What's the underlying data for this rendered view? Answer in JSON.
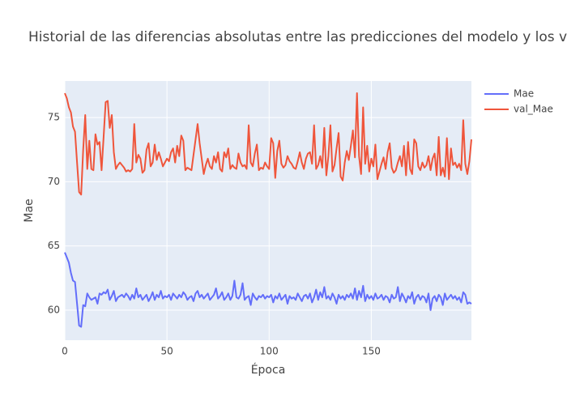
{
  "chart_data": {
    "type": "line",
    "title": "Historial de las diferencias absolutas entre las predicciones del modelo y los v",
    "x_label": "Época",
    "y_label": "Mae",
    "xlim": [
      0,
      199
    ],
    "ylim": [
      57.66,
      77.85
    ],
    "xticks": [
      0,
      50,
      100,
      150
    ],
    "yticks": [
      60,
      65,
      70,
      75
    ],
    "grid": true,
    "legend": "top-right",
    "x": [
      0,
      1,
      2,
      3,
      4,
      5,
      6,
      7,
      8,
      9,
      10,
      11,
      12,
      13,
      14,
      15,
      16,
      17,
      18,
      19,
      20,
      21,
      22,
      23,
      24,
      25,
      26,
      27,
      28,
      29,
      30,
      31,
      32,
      33,
      34,
      35,
      36,
      37,
      38,
      39,
      40,
      41,
      42,
      43,
      44,
      45,
      46,
      47,
      48,
      49,
      50,
      51,
      52,
      53,
      54,
      55,
      56,
      57,
      58,
      59,
      60,
      61,
      62,
      63,
      64,
      65,
      66,
      67,
      68,
      69,
      70,
      71,
      72,
      73,
      74,
      75,
      76,
      77,
      78,
      79,
      80,
      81,
      82,
      83,
      84,
      85,
      86,
      87,
      88,
      89,
      90,
      91,
      92,
      93,
      94,
      95,
      96,
      97,
      98,
      99,
      100,
      101,
      102,
      103,
      104,
      105,
      106,
      107,
      108,
      109,
      110,
      111,
      112,
      113,
      114,
      115,
      116,
      117,
      118,
      119,
      120,
      121,
      122,
      123,
      124,
      125,
      126,
      127,
      128,
      129,
      130,
      131,
      132,
      133,
      134,
      135,
      136,
      137,
      138,
      139,
      140,
      141,
      142,
      143,
      144,
      145,
      146,
      147,
      148,
      149,
      150,
      151,
      152,
      153,
      154,
      155,
      156,
      157,
      158,
      159,
      160,
      161,
      162,
      163,
      164,
      165,
      166,
      167,
      168,
      169,
      170,
      171,
      172,
      173,
      174,
      175,
      176,
      177,
      178,
      179,
      180,
      181,
      182,
      183,
      184,
      185,
      186,
      187,
      188,
      189,
      190,
      191,
      192,
      193,
      194,
      195,
      196,
      197,
      198,
      199
    ],
    "series": [
      {
        "name": "Mae",
        "color": "#636efa",
        "values": [
          64.5,
          64.1,
          63.7,
          62.9,
          62.3,
          62.2,
          60.5,
          58.8,
          58.7,
          60.4,
          60.3,
          61.3,
          61.0,
          60.8,
          60.9,
          61.0,
          60.5,
          61.3,
          61.2,
          61.4,
          61.3,
          61.6,
          60.8,
          61.1,
          61.5,
          60.7,
          61.0,
          61.1,
          61.2,
          61.0,
          61.3,
          61.1,
          60.8,
          61.2,
          60.9,
          61.7,
          61.0,
          61.2,
          60.8,
          61.0,
          61.2,
          60.7,
          61.0,
          61.4,
          60.8,
          61.2,
          61.0,
          61.5,
          60.9,
          61.1,
          61.0,
          61.2,
          60.8,
          61.3,
          61.1,
          60.9,
          61.2,
          61.0,
          61.4,
          61.2,
          60.8,
          61.0,
          61.1,
          60.7,
          61.3,
          61.5,
          61.0,
          61.2,
          60.9,
          61.1,
          61.3,
          60.8,
          61.0,
          61.2,
          61.7,
          60.9,
          61.1,
          61.4,
          60.8,
          61.0,
          61.3,
          60.8,
          61.1,
          62.3,
          61.0,
          60.9,
          61.2,
          62.1,
          60.8,
          61.0,
          61.1,
          60.4,
          61.3,
          61.0,
          60.8,
          61.1,
          61.0,
          61.2,
          60.9,
          61.1,
          61.0,
          61.2,
          60.6,
          61.1,
          60.9,
          61.3,
          60.8,
          61.0,
          61.2,
          60.5,
          61.1,
          60.9,
          61.0,
          60.8,
          61.3,
          61.0,
          60.7,
          61.1,
          61.2,
          60.9,
          61.3,
          60.6,
          61.0,
          61.6,
          60.8,
          61.4,
          61.0,
          61.8,
          60.9,
          61.1,
          60.8,
          61.3,
          61.0,
          60.5,
          61.2,
          60.9,
          61.1,
          60.8,
          61.2,
          61.0,
          61.3,
          60.9,
          61.7,
          60.8,
          61.5,
          61.0,
          61.9,
          60.7,
          61.2,
          60.9,
          61.1,
          60.8,
          61.3,
          60.9,
          61.0,
          61.2,
          60.8,
          61.1,
          61.0,
          60.6,
          61.2,
          60.9,
          61.0,
          61.8,
          60.7,
          61.3,
          61.0,
          60.6,
          61.1,
          60.9,
          61.4,
          60.5,
          61.0,
          61.2,
          60.8,
          61.1,
          61.0,
          60.6,
          61.3,
          60.0,
          60.9,
          61.1,
          60.7,
          61.2,
          61.0,
          60.4,
          61.3,
          60.8,
          61.0,
          61.2,
          60.9,
          61.1,
          60.8,
          61.0,
          60.6,
          61.4,
          61.2,
          60.5,
          60.6,
          60.5
        ]
      },
      {
        "name": "val_Mae",
        "color": "#EF553B",
        "values": [
          76.9,
          76.5,
          75.8,
          75.4,
          74.3,
          73.9,
          71.5,
          69.2,
          69.0,
          72.5,
          75.2,
          71.0,
          73.2,
          71.0,
          70.9,
          73.7,
          72.9,
          73.1,
          70.9,
          73.5,
          76.2,
          76.3,
          74.2,
          75.2,
          72.3,
          71.0,
          71.3,
          71.5,
          71.3,
          71.1,
          70.8,
          70.9,
          70.8,
          71.0,
          74.5,
          71.5,
          72.1,
          71.8,
          70.7,
          70.9,
          72.5,
          73.0,
          71.2,
          71.5,
          72.9,
          71.7,
          72.3,
          71.8,
          71.2,
          71.5,
          71.8,
          71.6,
          72.3,
          72.6,
          71.5,
          72.8,
          72.0,
          73.6,
          73.2,
          70.9,
          71.1,
          71.0,
          70.9,
          72.1,
          73.3,
          74.5,
          73.0,
          71.8,
          70.6,
          71.3,
          71.8,
          71.2,
          71.0,
          72.0,
          71.5,
          72.3,
          71.0,
          70.8,
          72.3,
          71.9,
          72.6,
          71.0,
          71.3,
          71.1,
          71.0,
          72.2,
          71.5,
          71.2,
          71.3,
          71.0,
          74.4,
          71.5,
          71.2,
          72.2,
          72.9,
          70.9,
          71.1,
          71.0,
          71.5,
          71.2,
          71.0,
          73.4,
          73.0,
          70.3,
          72.4,
          73.2,
          71.4,
          71.1,
          71.3,
          72.0,
          71.6,
          71.4,
          71.1,
          71.0,
          71.6,
          72.3,
          71.5,
          71.0,
          71.8,
          72.2,
          72.3,
          71.4,
          74.4,
          71.0,
          71.3,
          72.0,
          71.1,
          74.2,
          70.5,
          72.0,
          74.4,
          70.8,
          71.3,
          72.6,
          73.8,
          70.4,
          70.1,
          71.5,
          72.4,
          71.7,
          72.8,
          74.0,
          71.9,
          76.9,
          72.0,
          70.6,
          75.8,
          71.4,
          72.8,
          70.8,
          71.8,
          71.2,
          72.9,
          70.2,
          70.8,
          71.4,
          71.9,
          71.0,
          72.3,
          73.0,
          71.1,
          70.7,
          70.9,
          71.5,
          72.0,
          71.2,
          72.8,
          70.5,
          73.1,
          71.0,
          70.6,
          73.3,
          73.0,
          71.2,
          70.9,
          71.5,
          71.1,
          71.3,
          72.0,
          70.9,
          71.8,
          72.2,
          70.5,
          73.5,
          70.5,
          71.1,
          70.4,
          73.4,
          70.2,
          72.6,
          71.3,
          71.5,
          71.1,
          71.4,
          70.9,
          74.8,
          71.4,
          70.6,
          71.6,
          73.3
        ]
      }
    ]
  }
}
